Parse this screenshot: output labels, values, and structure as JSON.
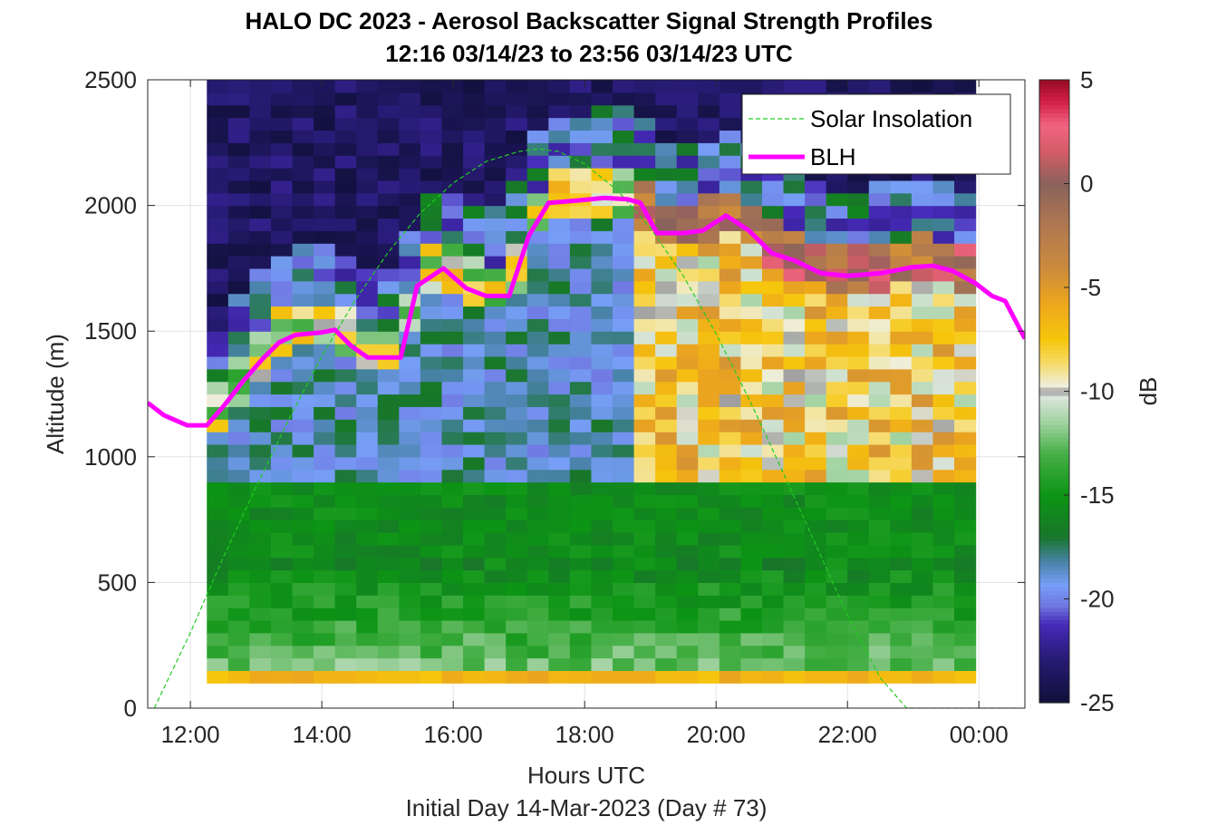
{
  "chart_data": {
    "type": "heatmap",
    "title": "HALO DC 2023 - Aerosol Backscatter Signal Strength Profiles",
    "subtitle": "12:16 03/14/23 to 23:56 03/14/23  UTC",
    "xlabel": "Hours UTC",
    "xlabel2": "Initial Day 14-Mar-2023 (Day # 73)",
    "ylabel": "Altitude (m)",
    "colorbar_label": "dB",
    "xlim": [
      11.35,
      24.7
    ],
    "ylim": [
      0,
      2500
    ],
    "x_ticks": [
      {
        "value": 12,
        "label": "12:00"
      },
      {
        "value": 14,
        "label": "14:00"
      },
      {
        "value": 16,
        "label": "16:00"
      },
      {
        "value": 18,
        "label": "18:00"
      },
      {
        "value": 20,
        "label": "20:00"
      },
      {
        "value": 22,
        "label": "22:00"
      },
      {
        "value": 24,
        "label": "00:00"
      }
    ],
    "y_ticks": [
      {
        "value": 0,
        "label": "0"
      },
      {
        "value": 500,
        "label": "500"
      },
      {
        "value": 1000,
        "label": "1000"
      },
      {
        "value": 1500,
        "label": "1500"
      },
      {
        "value": 2000,
        "label": "2000"
      },
      {
        "value": 2500,
        "label": "2500"
      }
    ],
    "colorbar_ticks": [
      {
        "value": 5,
        "label": "5"
      },
      {
        "value": 0,
        "label": "0"
      },
      {
        "value": -5,
        "label": "-5"
      },
      {
        "value": -10,
        "label": "-10"
      },
      {
        "value": -15,
        "label": "-15"
      },
      {
        "value": -20,
        "label": "-20"
      },
      {
        "value": -25,
        "label": "-25"
      }
    ],
    "clim": [
      -25,
      5
    ],
    "grid": true,
    "legend_position": "top-right",
    "heatmap": {
      "x_start": 12.25,
      "x_end": 23.95,
      "columns": 36,
      "y_start": 100,
      "row_height": 50,
      "rows": 48,
      "base_layer_db": -6.5,
      "values_note_db": "interpreted profile structure"
    },
    "series": [
      {
        "name": "Solar Insolation",
        "type": "line",
        "style": "dashed",
        "color": "#22cc22",
        "x": [
          11.45,
          12.0,
          12.5,
          13.0,
          13.5,
          14.0,
          14.5,
          15.0,
          15.5,
          16.0,
          16.5,
          17.0,
          17.3,
          17.6,
          18.0,
          18.5,
          19.0,
          19.5,
          20.0,
          20.5,
          21.0,
          21.5,
          22.0,
          22.5,
          22.9,
          23.15,
          24.6
        ],
        "y": [
          0,
          300,
          600,
          880,
          1150,
          1400,
          1620,
          1810,
          1970,
          2090,
          2175,
          2215,
          2225,
          2215,
          2165,
          2060,
          1910,
          1720,
          1490,
          1230,
          950,
          660,
          370,
          120,
          0,
          0,
          0
        ]
      },
      {
        "name": "BLH",
        "type": "line",
        "color": "#ff00ff",
        "x": [
          11.35,
          11.6,
          11.95,
          12.25,
          12.5,
          12.8,
          13.1,
          13.35,
          13.6,
          14.0,
          14.2,
          14.45,
          14.7,
          15.0,
          15.2,
          15.45,
          15.85,
          16.2,
          16.5,
          16.85,
          17.15,
          17.45,
          17.9,
          18.3,
          18.65,
          18.85,
          19.1,
          19.5,
          19.8,
          20.15,
          20.5,
          20.85,
          21.2,
          21.6,
          22.0,
          22.5,
          23.0,
          23.3,
          23.6,
          23.95,
          24.2,
          24.4,
          24.7
        ],
        "y": [
          1215,
          1165,
          1125,
          1125,
          1200,
          1300,
          1390,
          1455,
          1485,
          1495,
          1505,
          1440,
          1395,
          1395,
          1395,
          1680,
          1750,
          1670,
          1640,
          1640,
          1880,
          2010,
          2020,
          2030,
          2025,
          2010,
          1890,
          1890,
          1900,
          1960,
          1900,
          1810,
          1780,
          1730,
          1720,
          1730,
          1755,
          1760,
          1740,
          1690,
          1640,
          1620,
          1470
        ]
      }
    ]
  }
}
